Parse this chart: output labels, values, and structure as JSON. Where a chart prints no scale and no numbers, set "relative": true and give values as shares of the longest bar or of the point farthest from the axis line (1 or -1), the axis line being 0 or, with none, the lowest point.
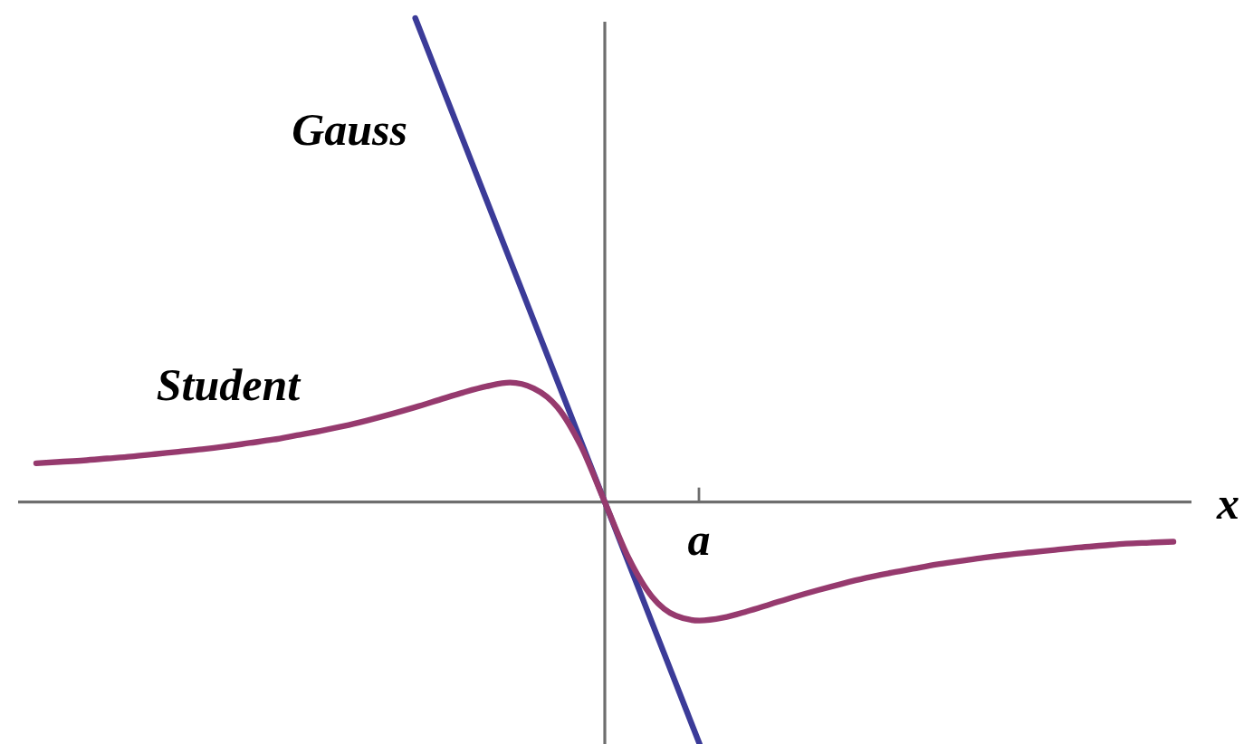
{
  "chart_data": {
    "type": "line",
    "xlabel": "x",
    "relative": true,
    "annotations": [
      "a"
    ],
    "categories": [
      null,
      null,
      null,
      null,
      null,
      null,
      null,
      null,
      null,
      null,
      null,
      null,
      null,
      null,
      null,
      null,
      null,
      null,
      null,
      null,
      null,
      null,
      null,
      null,
      null,
      null,
      null,
      null,
      null,
      null,
      null,
      null,
      null,
      null,
      null,
      null,
      null,
      null,
      null,
      null,
      null,
      null,
      null,
      null,
      null,
      null,
      null,
      null,
      null
    ],
    "series": [
      {
        "name": "Gauss",
        "color": "#3b3b98",
        "values": [
          null,
          null,
          null,
          null,
          null,
          null,
          null,
          null,
          null,
          null,
          null,
          null,
          null,
          null,
          null,
          null,
          1,
          0.875,
          0.75,
          0.625,
          0.5,
          0.375,
          0.25,
          0.125,
          0,
          -0.125,
          -0.25,
          -0.375,
          -0.5,
          null,
          null,
          null,
          null,
          null,
          null,
          null,
          null,
          null,
          null,
          null,
          null,
          null,
          null,
          null,
          null,
          null,
          null,
          null,
          null
        ]
      },
      {
        "name": "Student",
        "color": "#963a6e",
        "values": [
          0.08,
          0.083,
          0.086,
          0.09,
          0.094,
          0.099,
          0.104,
          0.109,
          0.115,
          0.122,
          0.129,
          0.138,
          0.147,
          0.157,
          0.169,
          0.182,
          0.196,
          0.211,
          0.226,
          0.239,
          0.247,
          0.235,
          0.196,
          0.115,
          0,
          -0.115,
          -0.196,
          -0.235,
          -0.245,
          -0.239,
          -0.226,
          -0.211,
          -0.196,
          -0.182,
          -0.169,
          -0.157,
          -0.147,
          -0.138,
          -0.129,
          -0.122,
          -0.115,
          -0.109,
          -0.104,
          -0.099,
          -0.094,
          -0.09,
          -0.086,
          -0.084,
          -0.082
        ]
      }
    ]
  }
}
